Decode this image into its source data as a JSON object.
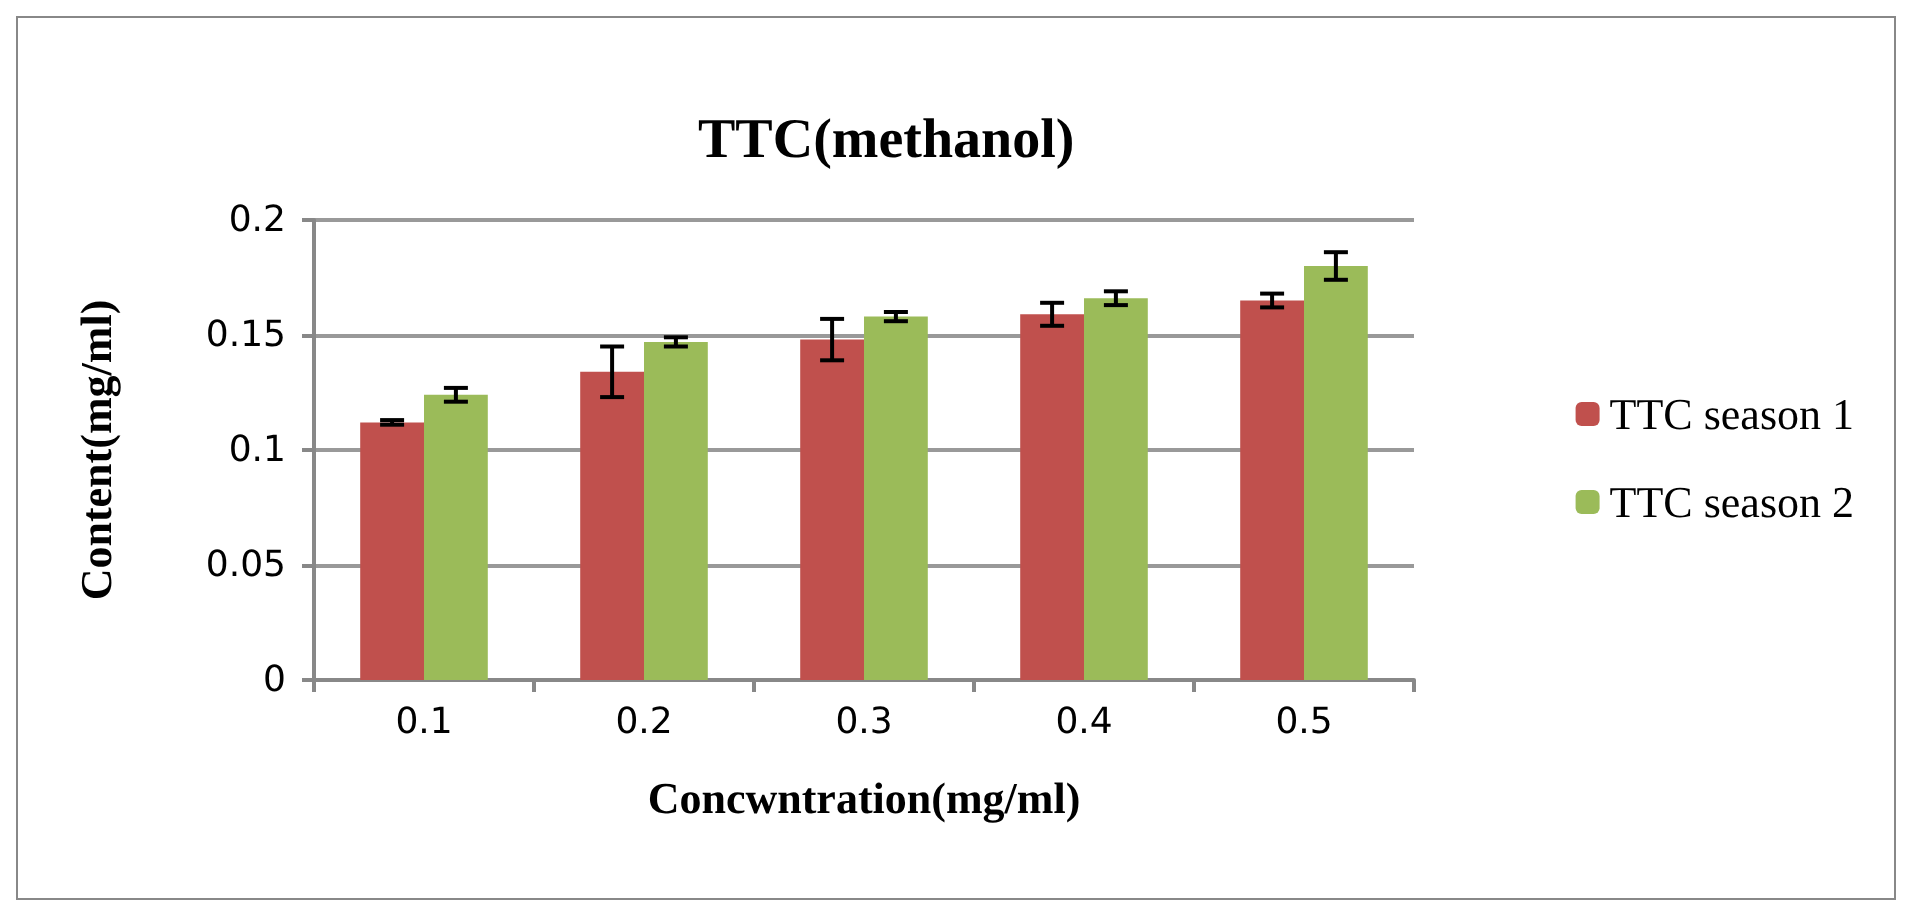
{
  "chart_data": {
    "type": "bar",
    "title": "TTC(methanol)",
    "xlabel": "Concwntration(mg/ml)",
    "ylabel": "Content(mg/ml)",
    "categories": [
      "0.1",
      "0.2",
      "0.3",
      "0.4",
      "0.5"
    ],
    "series": [
      {
        "name": "TTC season 1",
        "color": "#c0504d",
        "values": [
          0.112,
          0.134,
          0.148,
          0.159,
          0.165
        ],
        "errors": [
          0.001,
          0.011,
          0.009,
          0.005,
          0.003
        ]
      },
      {
        "name": "TTC season 2",
        "color": "#9bbb59",
        "values": [
          0.124,
          0.147,
          0.158,
          0.166,
          0.18
        ],
        "errors": [
          0.003,
          0.002,
          0.002,
          0.003,
          0.006
        ]
      }
    ],
    "ylim": [
      0,
      0.2
    ],
    "yticks": [
      0,
      0.05,
      0.1,
      0.15,
      0.2
    ],
    "grid": "y",
    "legend": "right"
  }
}
